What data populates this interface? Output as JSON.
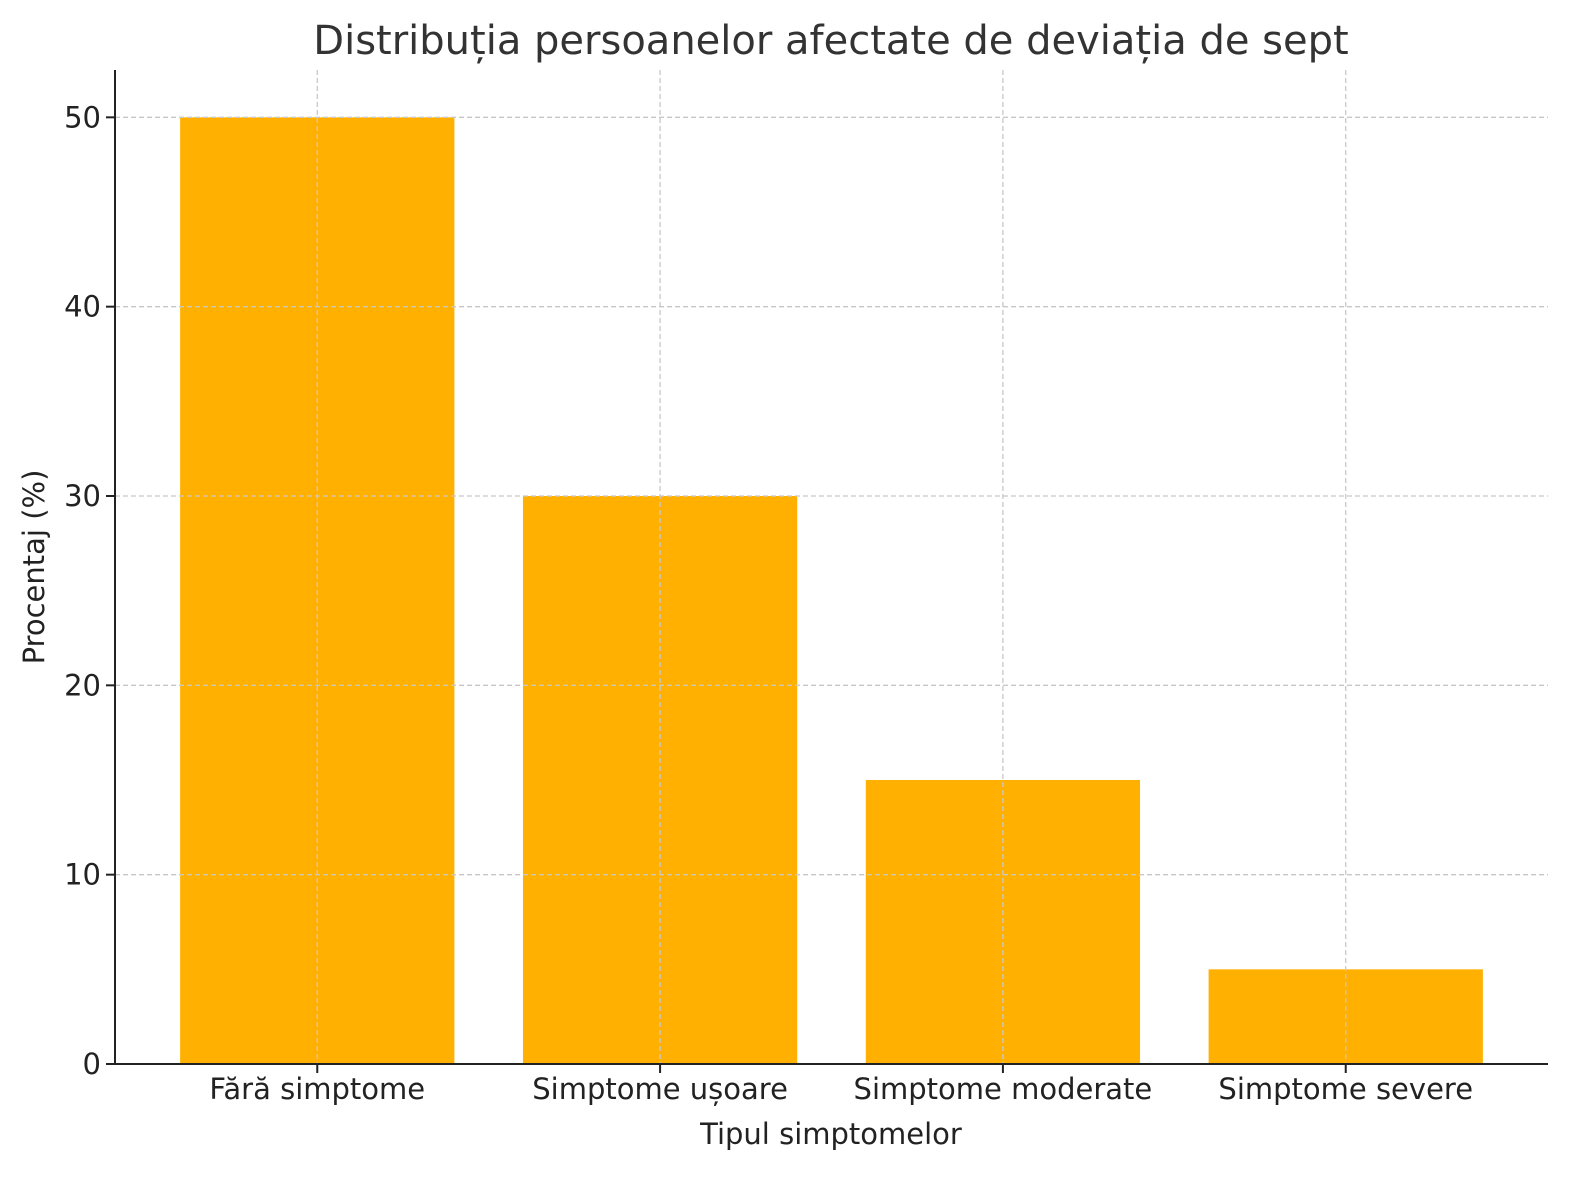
{
  "chart_data": {
    "type": "bar",
    "title": "Distribuția persoanelor afectate de deviația de sept",
    "xlabel": "Tipul simptomelor",
    "ylabel": "Procentaj (%)",
    "categories": [
      "Fără simptome",
      "Simptome ușoare",
      "Simptome moderate",
      "Simptome severe"
    ],
    "values": [
      50,
      30,
      15,
      5
    ],
    "ylim": [
      0,
      52.5
    ],
    "yticks": [
      0,
      10,
      20,
      30,
      40,
      50
    ],
    "grid": true,
    "bar_color": "#FFB000",
    "grid_color": "#c8c8c8",
    "text_color": "#222222"
  }
}
